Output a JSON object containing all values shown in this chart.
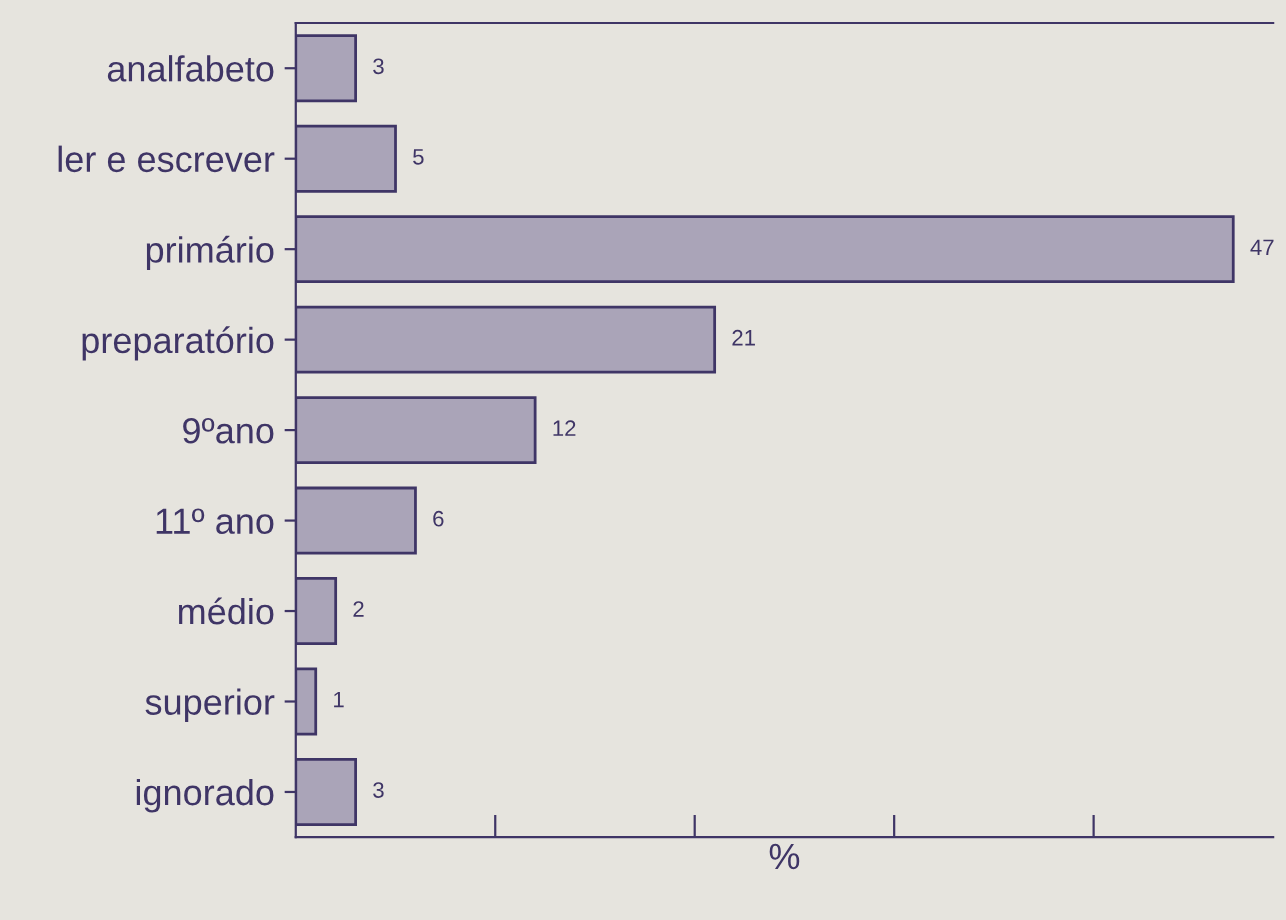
{
  "chart_data": {
    "type": "bar",
    "orientation": "horizontal",
    "categories": [
      "analfabeto",
      "ler e escrever",
      "primário",
      "preparatório",
      "9ºano",
      "11º ano",
      "médio",
      "superior",
      "ignorado"
    ],
    "values": [
      3,
      5,
      47,
      21,
      12,
      6,
      2,
      1,
      3
    ],
    "color": "#aaa4b8",
    "data_labels": true,
    "xlabel": "%",
    "xlim": [
      0,
      49
    ],
    "xticks": [
      {
        "value": 10,
        "label": null
      },
      {
        "value": 20,
        "label": null
      },
      {
        "value": 30,
        "label": null
      },
      {
        "value": 40,
        "label": null
      }
    ],
    "tick_labels": "y",
    "grid": false,
    "legend": false
  }
}
